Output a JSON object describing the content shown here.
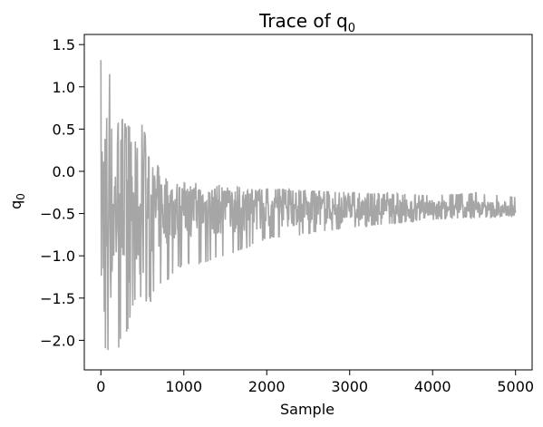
{
  "chart_data": {
    "type": "line",
    "title": "Trace of q",
    "title_subscript": "0",
    "xlabel": "Sample",
    "ylabel": "q",
    "ylabel_subscript": "0",
    "xlim": [
      -200,
      5200
    ],
    "ylim": [
      -2.35,
      1.62
    ],
    "xticks": [
      0,
      1000,
      2000,
      3000,
      4000,
      5000
    ],
    "xtick_labels": [
      "0",
      "1000",
      "2000",
      "3000",
      "4000",
      "5000"
    ],
    "yticks": [
      1.5,
      1.0,
      0.5,
      0.0,
      -0.5,
      -1.0,
      -1.5,
      -2.0
    ],
    "ytick_labels": [
      "1.5",
      "1.0",
      "0.5",
      "0.0",
      "−0.5",
      "−1.0",
      "−1.5",
      "−2.0"
    ],
    "grid": false,
    "legend": "none",
    "series": [
      {
        "color": "#a6a6a6",
        "n_samples": 5000,
        "envelope": {
          "x": [
            0,
            50,
            100,
            150,
            200,
            300,
            400,
            500,
            600,
            700,
            800,
            1000,
            1200,
            1500,
            1800,
            2000,
            2500,
            3000,
            3500,
            4000,
            4500,
            5000
          ],
          "upper": [
            1.45,
            1.45,
            1.25,
            0.62,
            0.62,
            0.62,
            0.62,
            0.62,
            0.05,
            0.05,
            -0.18,
            -0.2,
            -0.22,
            -0.22,
            -0.22,
            -0.2,
            -0.22,
            -0.24,
            -0.26,
            -0.28,
            -0.25,
            -0.3
          ],
          "lower": [
            -2.17,
            -2.17,
            -2.15,
            -2.12,
            -2.1,
            -2.05,
            -1.55,
            -1.55,
            -1.55,
            -1.35,
            -1.3,
            -1.1,
            -1.1,
            -1.0,
            -0.9,
            -0.8,
            -0.75,
            -0.68,
            -0.62,
            -0.58,
            -0.55,
            -0.52
          ],
          "center": -0.45
        }
      }
    ]
  }
}
